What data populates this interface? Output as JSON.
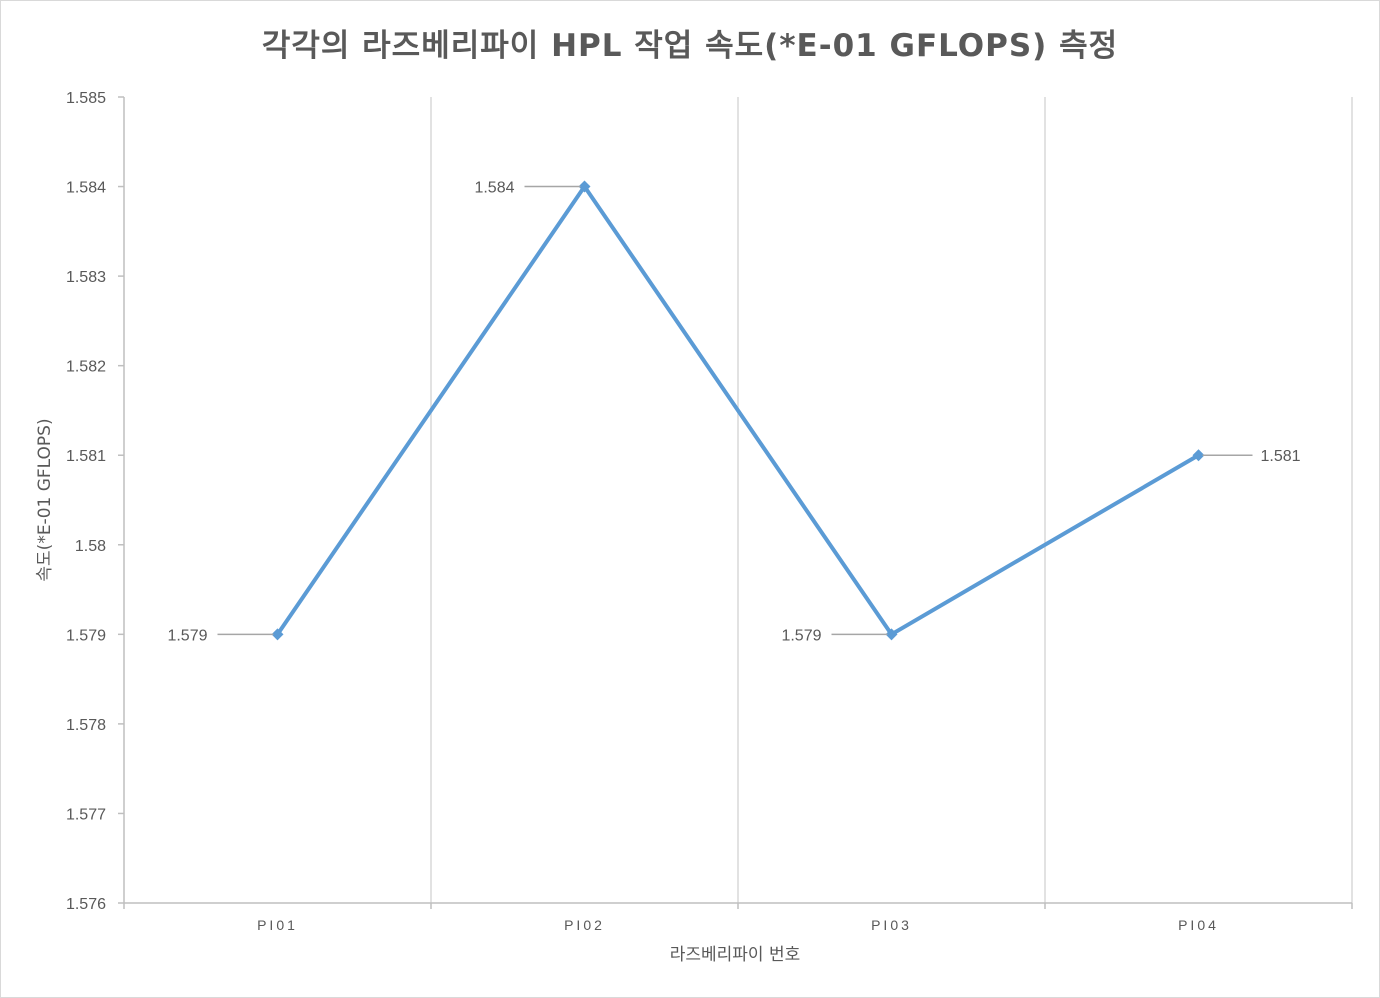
{
  "chart_data": {
    "type": "line",
    "title": "각각의 라즈베리파이 HPL 작업 속도(*E-01 GFLOPS) 측정",
    "xlabel": "라즈베리파이 번호",
    "ylabel": "속도(*E-01 GFLOPS)",
    "categories": [
      "PI01",
      "PI02",
      "PI03",
      "PI04"
    ],
    "series": [
      {
        "values": [
          1.579,
          1.584,
          1.579,
          1.581
        ],
        "data_labels": [
          "1.579",
          "1.584",
          "1.579",
          "1.581"
        ],
        "label_sides": [
          "left",
          "left",
          "left",
          "right"
        ]
      }
    ],
    "ylim": [
      1.576,
      1.585
    ],
    "y_ticks": [
      "1.576",
      "1.577",
      "1.578",
      "1.579",
      "1.58",
      "1.581",
      "1.582",
      "1.583",
      "1.584",
      "1.585"
    ],
    "grid": "vertical",
    "legend": "none",
    "colors": {
      "series": "#5b9bd5",
      "grid": "#d9d9d9",
      "axis": "#bfbfbf",
      "text": "#595959",
      "leader": "#a6a6a6"
    }
  }
}
